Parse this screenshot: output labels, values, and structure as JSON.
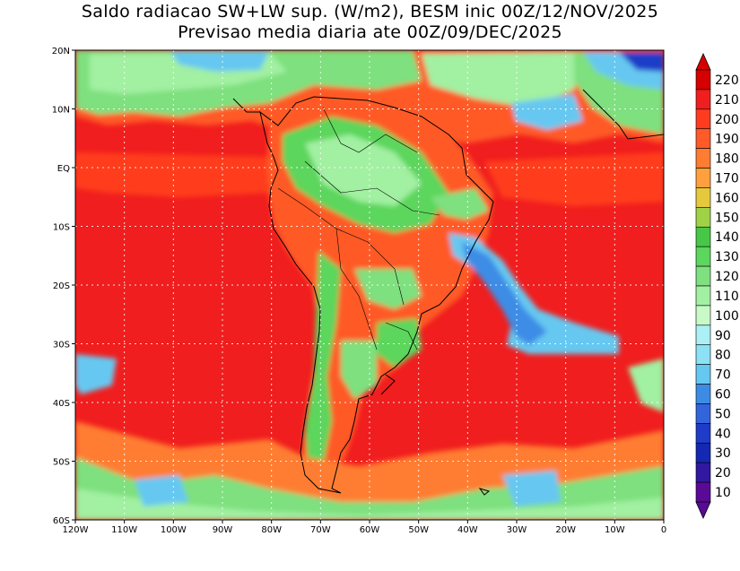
{
  "title_line1": "Saldo radiacao SW+LW sup. (W/m2), BESM inic 00Z/12/NOV/2025",
  "title_line2": "Previsao media diaria ate 00Z/09/DEC/2025",
  "map": {
    "lon_range": [
      -120,
      0
    ],
    "lat_range": [
      -60,
      20
    ],
    "lon_ticks": [
      {
        "v": -120,
        "label": "120W"
      },
      {
        "v": -110,
        "label": "110W"
      },
      {
        "v": -100,
        "label": "100W"
      },
      {
        "v": -90,
        "label": "90W"
      },
      {
        "v": -80,
        "label": "80W"
      },
      {
        "v": -70,
        "label": "70W"
      },
      {
        "v": -60,
        "label": "60W"
      },
      {
        "v": -50,
        "label": "50W"
      },
      {
        "v": -40,
        "label": "40W"
      },
      {
        "v": -30,
        "label": "30W"
      },
      {
        "v": -20,
        "label": "20W"
      },
      {
        "v": -10,
        "label": "10W"
      },
      {
        "v": 0,
        "label": "0"
      }
    ],
    "lat_ticks": [
      {
        "v": 20,
        "label": "20N"
      },
      {
        "v": 10,
        "label": "10N"
      },
      {
        "v": 0,
        "label": "EQ"
      },
      {
        "v": -10,
        "label": "10S"
      },
      {
        "v": -20,
        "label": "20S"
      },
      {
        "v": -30,
        "label": "30S"
      },
      {
        "v": -40,
        "label": "40S"
      },
      {
        "v": -50,
        "label": "50S"
      },
      {
        "v": -60,
        "label": "60S"
      }
    ],
    "gridlines": true,
    "colors": {
      "background_ocean": "#f01e1e",
      "land_high": "#ff5a28",
      "green_mid": "#5cd65c",
      "green_light": "#a2f0a2",
      "blue_light": "#66c8f0",
      "blue_mid": "#3c8ce6",
      "blue_dark": "#1e3cc8"
    }
  },
  "colorbar": {
    "levels": [
      {
        "label": "220",
        "color": "#d70000"
      },
      {
        "label": "210",
        "color": "#f01e1e"
      },
      {
        "label": "200",
        "color": "#ff3c1e"
      },
      {
        "label": "190",
        "color": "#ff5a28"
      },
      {
        "label": "180",
        "color": "#ff7d32"
      },
      {
        "label": "170",
        "color": "#ffa03c"
      },
      {
        "label": "160",
        "color": "#e6c83c"
      },
      {
        "label": "150",
        "color": "#a0d246"
      },
      {
        "label": "140",
        "color": "#46c846"
      },
      {
        "label": "130",
        "color": "#5cd65c"
      },
      {
        "label": "120",
        "color": "#7ee07e"
      },
      {
        "label": "110",
        "color": "#a2f0a2"
      },
      {
        "label": "100",
        "color": "#c8fac8"
      },
      {
        "label": "90",
        "color": "#aaf0f5"
      },
      {
        "label": "80",
        "color": "#8ce1f5"
      },
      {
        "label": "70",
        "color": "#66c8f0"
      },
      {
        "label": "60",
        "color": "#3c8ce6"
      },
      {
        "label": "50",
        "color": "#3264dc"
      },
      {
        "label": "40",
        "color": "#1e3cc8"
      },
      {
        "label": "30",
        "color": "#1428b4"
      },
      {
        "label": "20",
        "color": "#3218a0"
      },
      {
        "label": "10",
        "color": "#5a0a96"
      }
    ],
    "top_arrow_color": "#d70000",
    "bottom_arrow_color": "#5a0a96"
  }
}
